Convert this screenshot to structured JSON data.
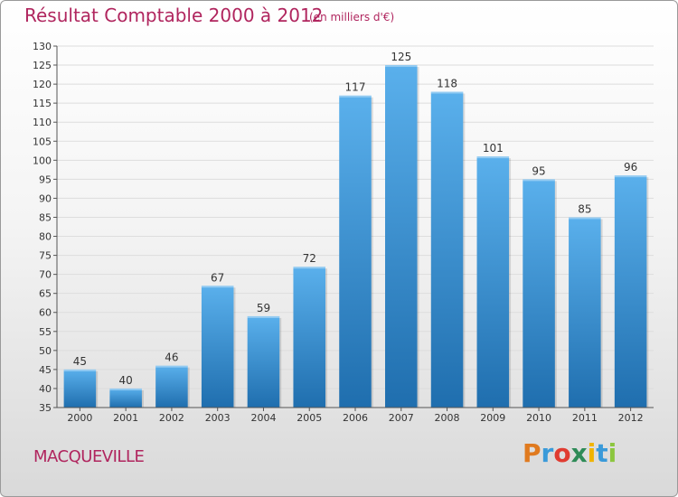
{
  "chart_data": {
    "type": "bar",
    "title": "Résultat Comptable 2000 à 2012",
    "subtitle": "(en milliers d'€)",
    "categories": [
      "2000",
      "2001",
      "2002",
      "2003",
      "2004",
      "2005",
      "2006",
      "2007",
      "2008",
      "2009",
      "2010",
      "2011",
      "2012"
    ],
    "values": [
      45,
      40,
      46,
      67,
      59,
      72,
      117,
      125,
      118,
      101,
      95,
      85,
      96
    ],
    "ylim": [
      35,
      130
    ],
    "yticks": [
      35,
      40,
      45,
      50,
      55,
      60,
      65,
      70,
      75,
      80,
      85,
      90,
      95,
      100,
      105,
      110,
      115,
      120,
      125,
      130
    ],
    "xlabel": "",
    "ylabel": "",
    "grid": true
  },
  "place": "MACQUEVILLE",
  "brand": {
    "letters": [
      "P",
      "r",
      "o",
      "x",
      "i",
      "t",
      "i"
    ],
    "colors": [
      "#e07a1f",
      "#3a9ad9",
      "#e03c31",
      "#2e8b57",
      "#f0b400",
      "#3a9ad9",
      "#8cc63f"
    ]
  },
  "colors": {
    "accent": "#b0255e",
    "bar_top": "#5ab0ec",
    "bar_bottom": "#1f6eae",
    "grid": "#dddddd"
  }
}
